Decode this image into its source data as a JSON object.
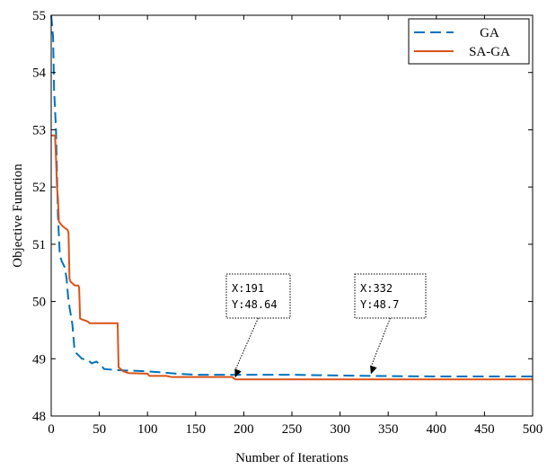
{
  "chart_data": {
    "type": "line",
    "xlabel": "Number of Iterations",
    "ylabel": "Objective Function",
    "xlim": [
      0,
      500
    ],
    "ylim": [
      48,
      55
    ],
    "xticks": [
      0,
      50,
      100,
      150,
      200,
      250,
      300,
      350,
      400,
      450,
      500
    ],
    "yticks": [
      48,
      49,
      50,
      51,
      52,
      53,
      54,
      55
    ],
    "grid": false,
    "legend_position": "top-right",
    "series": [
      {
        "name": "GA",
        "color": "#0072BD",
        "style": "dashed",
        "points": [
          [
            0,
            55.0
          ],
          [
            2,
            54.6
          ],
          [
            3,
            53.7
          ],
          [
            5,
            53.0
          ],
          [
            7,
            51.5
          ],
          [
            9,
            50.8
          ],
          [
            11,
            50.7
          ],
          [
            14,
            50.6
          ],
          [
            16,
            50.4
          ],
          [
            18,
            50.0
          ],
          [
            20,
            49.8
          ],
          [
            22,
            49.6
          ],
          [
            24,
            49.2
          ],
          [
            26,
            49.1
          ],
          [
            29,
            49.05
          ],
          [
            32,
            49.0
          ],
          [
            38,
            48.98
          ],
          [
            42,
            48.92
          ],
          [
            47,
            48.95
          ],
          [
            52,
            48.88
          ],
          [
            55,
            48.82
          ],
          [
            70,
            48.8
          ],
          [
            100,
            48.78
          ],
          [
            130,
            48.74
          ],
          [
            150,
            48.72
          ],
          [
            200,
            48.72
          ],
          [
            250,
            48.72
          ],
          [
            332,
            48.7
          ],
          [
            400,
            48.69
          ],
          [
            500,
            48.69
          ]
        ]
      },
      {
        "name": "SA-GA",
        "color": "#D95319",
        "style": "solid",
        "points": [
          [
            0,
            52.9
          ],
          [
            4,
            52.9
          ],
          [
            5,
            52.5
          ],
          [
            6,
            52.0
          ],
          [
            7,
            51.8
          ],
          [
            8,
            51.4
          ],
          [
            10,
            51.35
          ],
          [
            13,
            51.3
          ],
          [
            17,
            51.25
          ],
          [
            18,
            51.2
          ],
          [
            19,
            50.4
          ],
          [
            20,
            50.35
          ],
          [
            23,
            50.3
          ],
          [
            25,
            50.28
          ],
          [
            28,
            50.28
          ],
          [
            29,
            50.25
          ],
          [
            30,
            49.7
          ],
          [
            33,
            49.68
          ],
          [
            38,
            49.65
          ],
          [
            40,
            49.62
          ],
          [
            55,
            49.62
          ],
          [
            69,
            49.62
          ],
          [
            70,
            48.85
          ],
          [
            75,
            48.78
          ],
          [
            80,
            48.75
          ],
          [
            100,
            48.74
          ],
          [
            102,
            48.7
          ],
          [
            120,
            48.7
          ],
          [
            125,
            48.68
          ],
          [
            188,
            48.68
          ],
          [
            191,
            48.64
          ],
          [
            250,
            48.64
          ],
          [
            332,
            48.64
          ],
          [
            400,
            48.64
          ],
          [
            500,
            48.64
          ]
        ]
      }
    ],
    "annotations": [
      {
        "x": 191,
        "y": 48.64,
        "lines": [
          "X:191",
          "Y:48.64"
        ]
      },
      {
        "x": 332,
        "y": 48.7,
        "lines": [
          "X:332",
          "Y:48.7"
        ]
      }
    ]
  }
}
